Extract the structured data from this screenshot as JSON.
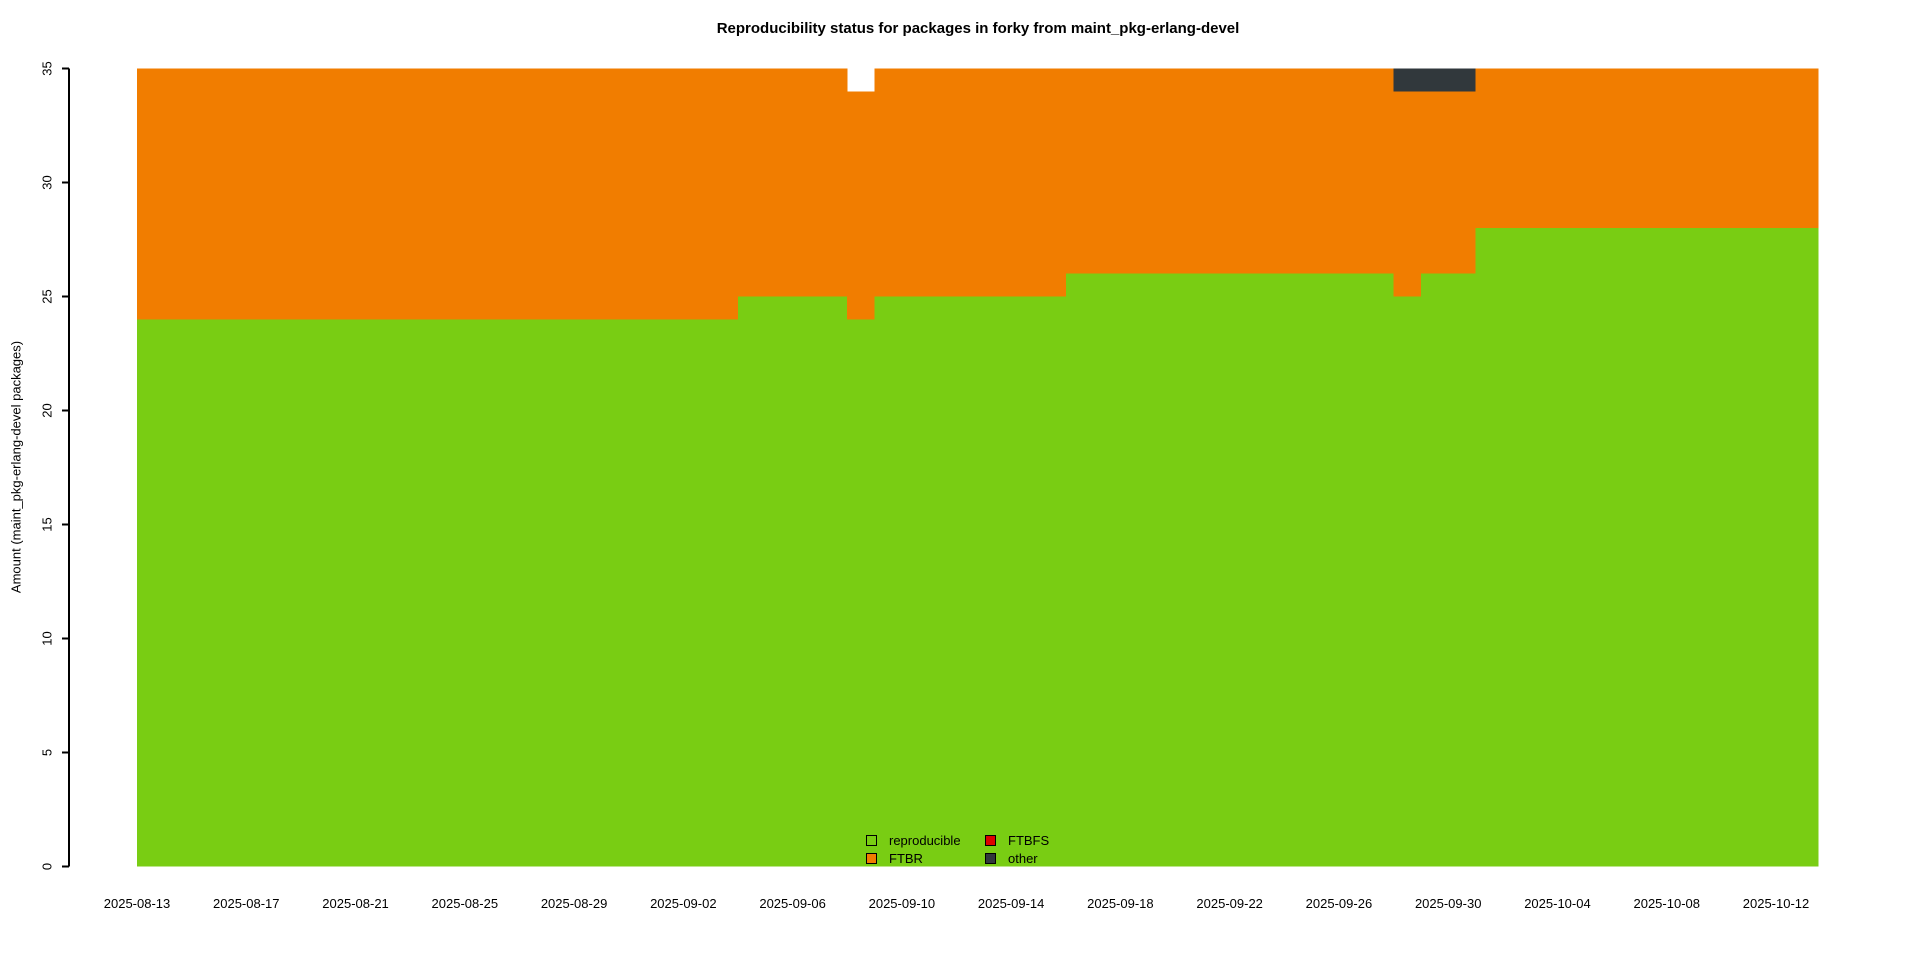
{
  "chart_data": {
    "type": "area",
    "title": "Reproducibility status for packages in forky from maint_pkg-erlang-devel",
    "xlabel": "",
    "ylabel": "Amount (maint_pkg-erlang-devel packages)",
    "ylim": [
      0,
      35
    ],
    "yticks": [
      0,
      5,
      10,
      15,
      20,
      25,
      30,
      35
    ],
    "xticks": [
      "2025-08-13",
      "2025-08-17",
      "2025-08-21",
      "2025-08-25",
      "2025-08-29",
      "2025-09-02",
      "2025-09-06",
      "2025-09-10",
      "2025-09-14",
      "2025-09-18",
      "2025-09-22",
      "2025-09-26",
      "2025-09-30",
      "2025-10-04",
      "2025-10-08",
      "2025-10-12"
    ],
    "x_start": "2025-08-13",
    "x_end": "2025-10-13",
    "grid": false,
    "legend_position": "bottom-center-inside",
    "background": "#ffffff",
    "series_order": [
      "reproducible",
      "FTBR",
      "FTBFS",
      "other"
    ],
    "colors": {
      "reproducible": "#79cd13",
      "FTBR": "#f17d00",
      "FTBFS": "#dd0000",
      "other": "#31383c"
    },
    "legend": [
      {
        "label": "reproducible",
        "color": "#79cd13"
      },
      {
        "label": "FTBFS",
        "color": "#dd0000"
      },
      {
        "label": "FTBR",
        "color": "#f17d00"
      },
      {
        "label": "other",
        "color": "#31383c"
      }
    ],
    "segments": [
      {
        "from": "2025-08-13",
        "to": "2025-09-03",
        "reproducible": 24,
        "FTBR": 11,
        "FTBFS": 0,
        "other": 0
      },
      {
        "from": "2025-09-04",
        "to": "2025-09-07",
        "reproducible": 25,
        "FTBR": 10,
        "FTBFS": 0,
        "other": 0
      },
      {
        "from": "2025-09-08",
        "to": "2025-09-08",
        "reproducible": 24,
        "FTBR": 10,
        "FTBFS": 0,
        "other": 0
      },
      {
        "from": "2025-09-09",
        "to": "2025-09-15",
        "reproducible": 25,
        "FTBR": 10,
        "FTBFS": 0,
        "other": 0
      },
      {
        "from": "2025-09-16",
        "to": "2025-09-27",
        "reproducible": 26,
        "FTBR": 9,
        "FTBFS": 0,
        "other": 0
      },
      {
        "from": "2025-09-28",
        "to": "2025-09-28",
        "reproducible": 25,
        "FTBR": 9,
        "FTBFS": 0,
        "other": 1
      },
      {
        "from": "2025-09-29",
        "to": "2025-09-30",
        "reproducible": 26,
        "FTBR": 8,
        "FTBFS": 0,
        "other": 1
      },
      {
        "from": "2025-10-01",
        "to": "2025-10-13",
        "reproducible": 28,
        "FTBR": 7,
        "FTBFS": 0,
        "other": 0
      }
    ]
  }
}
